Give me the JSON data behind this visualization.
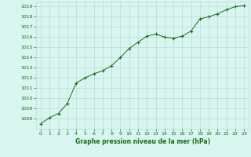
{
  "x": [
    0,
    1,
    2,
    3,
    4,
    5,
    6,
    7,
    8,
    9,
    10,
    11,
    12,
    13,
    14,
    15,
    16,
    17,
    18,
    19,
    20,
    21,
    22,
    23
  ],
  "y": [
    1007.5,
    1008.1,
    1008.5,
    1009.5,
    1011.5,
    1012.0,
    1012.4,
    1012.7,
    1013.2,
    1014.0,
    1014.9,
    1015.5,
    1016.1,
    1016.3,
    1016.0,
    1015.9,
    1016.1,
    1016.6,
    1017.8,
    1018.0,
    1018.3,
    1018.7,
    1019.0,
    1019.1
  ],
  "line_color": "#1a6b1a",
  "marker": "+",
  "marker_color": "#1a6b1a",
  "bg_color": "#d8f5f0",
  "grid_color": "#b8ddd6",
  "xlabel": "Graphe pression niveau de la mer (hPa)",
  "xlabel_color": "#1a6b1a",
  "tick_color": "#1a6b1a",
  "ylim": [
    1007.0,
    1019.5
  ],
  "xlim": [
    -0.5,
    23.5
  ],
  "yticks": [
    1008,
    1009,
    1010,
    1011,
    1012,
    1013,
    1014,
    1015,
    1016,
    1017,
    1018,
    1019
  ],
  "xticks": [
    0,
    1,
    2,
    3,
    4,
    5,
    6,
    7,
    8,
    9,
    10,
    11,
    12,
    13,
    14,
    15,
    16,
    17,
    18,
    19,
    20,
    21,
    22,
    23
  ]
}
